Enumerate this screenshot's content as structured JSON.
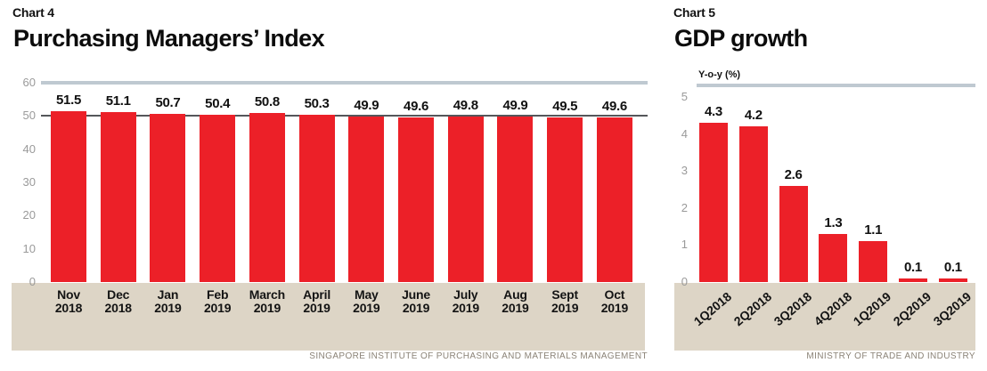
{
  "colors": {
    "bar_red": "#ec2028",
    "beige_panel": "#ddd5c6",
    "top_rule": "#bfc9d1",
    "reference_line": "#55565a",
    "tick_gray": "#9a9a9a",
    "source_gray": "#8b8377",
    "text_black": "#111111"
  },
  "charts": [
    {
      "chart_label": "Chart 4",
      "source": "SINGAPORE INSTITUTE OF PURCHASING AND MATERIALS MANAGEMENT",
      "chart_data": {
        "type": "bar",
        "title": "Purchasing Managers’ Index",
        "xlabel": "",
        "ylabel": "",
        "categories": [
          "Nov 2018",
          "Dec 2018",
          "Jan 2019",
          "Feb 2019",
          "March 2019",
          "April 2019",
          "May 2019",
          "June 2019",
          "July 2019",
          "Aug 2019",
          "Sept 2019",
          "Oct 2019"
        ],
        "values": [
          51.5,
          51.1,
          50.7,
          50.4,
          50.8,
          50.3,
          49.9,
          49.6,
          49.8,
          49.9,
          49.5,
          49.6
        ],
        "ylim": [
          0,
          60
        ],
        "yticks": [
          0,
          10,
          20,
          30,
          40,
          50,
          60
        ],
        "reference_line": 50,
        "value_labels": true,
        "grid": "off",
        "legend": "none",
        "bar_color": "#ec2028"
      }
    },
    {
      "chart_label": "Chart 5",
      "source": "MINISTRY OF TRADE AND INDUSTRY",
      "chart_data": {
        "type": "bar",
        "title": "GDP growth",
        "xlabel": "",
        "ylabel": "Y-o-y (%)",
        "categories": [
          "1Q2018",
          "2Q2018",
          "3Q2018",
          "4Q2018",
          "1Q2019",
          "2Q2019",
          "3Q2019"
        ],
        "values": [
          4.3,
          4.2,
          2.6,
          1.3,
          1.1,
          0.1,
          0.1
        ],
        "ylim": [
          0,
          5
        ],
        "yticks": [
          0,
          1,
          2,
          3,
          4,
          5
        ],
        "value_labels": true,
        "grid": "off",
        "legend": "none",
        "bar_color": "#ec2028"
      }
    }
  ]
}
